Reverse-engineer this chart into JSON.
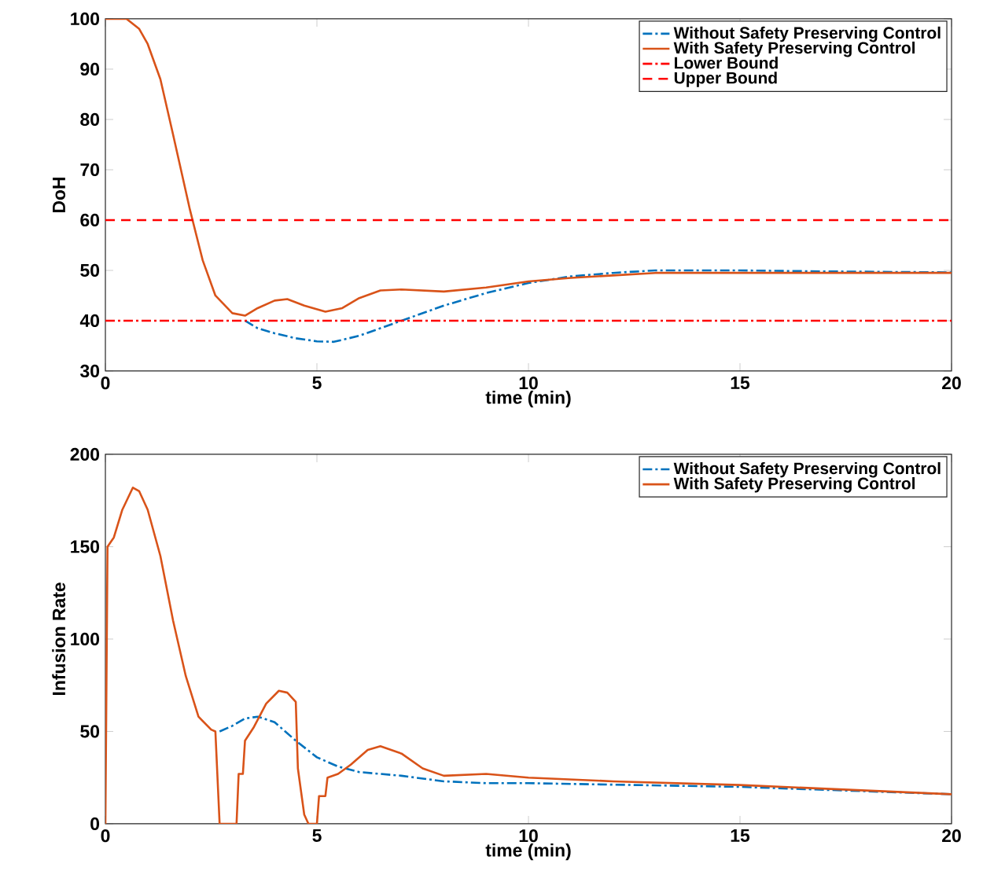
{
  "chart_data": [
    {
      "type": "line",
      "xlabel": "time (min)",
      "ylabel": "DoH",
      "xlim": [
        0,
        20
      ],
      "ylim": [
        30,
        100
      ],
      "xticks": [
        0,
        5,
        10,
        15,
        20
      ],
      "yticks": [
        30,
        40,
        50,
        60,
        70,
        80,
        90,
        100
      ],
      "legend": "top right",
      "grid": false,
      "series": [
        {
          "name": "Without Safety Preserving Control",
          "color": "#0072bd",
          "line_style": "dashdot",
          "x": [
            3.3,
            3.6,
            4,
            4.5,
            5,
            5.4,
            6,
            6.5,
            7,
            8,
            9,
            10,
            11,
            12,
            13,
            15,
            17,
            20
          ],
          "values": [
            40,
            38.5,
            37.5,
            36.5,
            35.9,
            35.8,
            37,
            38.5,
            40,
            43,
            45.5,
            47.5,
            48.8,
            49.5,
            50,
            50,
            49.8,
            49.6
          ]
        },
        {
          "name": "With Safety Preserving Control",
          "color": "#d95319",
          "line_style": "solid",
          "x": [
            0,
            0.5,
            0.8,
            1,
            1.3,
            1.6,
            2,
            2.3,
            2.6,
            3,
            3.3,
            3.6,
            4,
            4.3,
            4.7,
            5.2,
            5.6,
            6,
            6.5,
            7,
            8,
            9,
            10,
            11,
            12,
            13,
            15,
            20
          ],
          "values": [
            100,
            100,
            98,
            95,
            88,
            77,
            62,
            52,
            45,
            41.5,
            41,
            42.5,
            44,
            44.3,
            43,
            41.8,
            42.5,
            44.5,
            46,
            46.2,
            45.8,
            46.6,
            47.8,
            48.5,
            49,
            49.5,
            49.5,
            49.5
          ]
        }
      ],
      "ref_lines": [
        {
          "axis": "y",
          "value": 40,
          "label": "Lower Bound",
          "color": "#ff0000",
          "line_style": "dashdot"
        },
        {
          "axis": "y",
          "value": 60,
          "label": "Upper Bound",
          "color": "#ff0000",
          "line_style": "dashed"
        }
      ]
    },
    {
      "type": "line",
      "xlabel": "time (min)",
      "ylabel": "Infusion Rate",
      "xlim": [
        0,
        20
      ],
      "ylim": [
        0,
        200
      ],
      "xticks": [
        0,
        5,
        10,
        15,
        20
      ],
      "yticks": [
        0,
        50,
        100,
        150,
        200
      ],
      "legend": "top right",
      "grid": false,
      "series": [
        {
          "name": "Without Safety Preserving Control",
          "color": "#0072bd",
          "line_style": "dashdot",
          "x": [
            2.7,
            3,
            3.3,
            3.6,
            4,
            4.5,
            5,
            5.5,
            6,
            7,
            8,
            9,
            10,
            15,
            20
          ],
          "values": [
            50,
            53,
            57,
            58,
            55,
            45,
            36,
            31,
            28,
            26,
            23,
            22,
            22,
            20,
            16
          ]
        },
        {
          "name": "With Safety Preserving Control",
          "color": "#d95319",
          "line_style": "solid",
          "x": [
            0,
            0.05,
            0.2,
            0.4,
            0.65,
            0.8,
            1,
            1.3,
            1.6,
            1.9,
            2.2,
            2.5,
            2.6,
            2.7,
            3.1,
            3.15,
            3.25,
            3.3,
            3.5,
            3.8,
            4.1,
            4.3,
            4.5,
            4.55,
            4.7,
            4.8,
            5,
            5.05,
            5.2,
            5.25,
            5.5,
            5.8,
            6.2,
            6.5,
            7,
            7.5,
            8,
            9,
            10,
            12,
            15,
            20
          ],
          "values": [
            0,
            150,
            155,
            170,
            182,
            180,
            170,
            145,
            110,
            80,
            58,
            51,
            50,
            0,
            0,
            27,
            27,
            45,
            52,
            65,
            72,
            71,
            66,
            30,
            5,
            0,
            0,
            15,
            15,
            25,
            27,
            32,
            40,
            42,
            38,
            30,
            26,
            27,
            25,
            23,
            21,
            16
          ]
        }
      ]
    }
  ]
}
